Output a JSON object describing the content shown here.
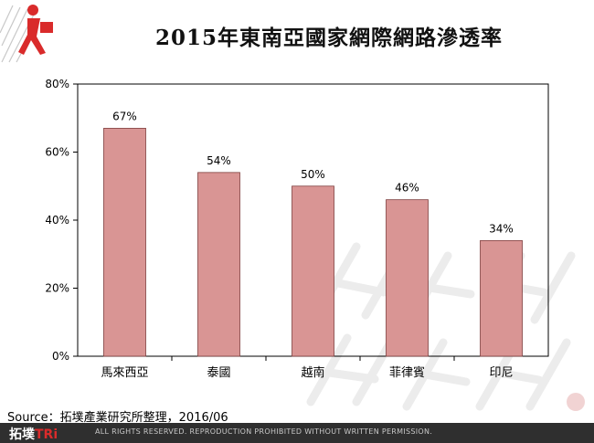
{
  "title": "2015年東南亞國家網際網路滲透率",
  "source": "Source：拓墣產業研究所整理，2016/06",
  "footer": {
    "brand_cn": "拓墣",
    "brand_en": "TRi",
    "notice": "ALL RIGHTS RESERVED. REPRODUCTION PROHIBITED WITHOUT WRITTEN PERMISSION."
  },
  "colors": {
    "bar": "#d99594",
    "bar_border": "#7f3f3e",
    "accent": "#d92b2b"
  },
  "chart_data": {
    "type": "bar",
    "title": "2015年東南亞國家網際網路滲透率",
    "xlabel": "",
    "ylabel": "",
    "categories": [
      "馬來西亞",
      "泰國",
      "越南",
      "菲律賓",
      "印尼"
    ],
    "values": [
      67,
      54,
      50,
      46,
      34
    ],
    "data_labels": [
      "67%",
      "54%",
      "50%",
      "46%",
      "34%"
    ],
    "ylim": [
      0,
      80
    ],
    "yticks": [
      0,
      20,
      40,
      60,
      80
    ],
    "ytick_labels": [
      "0%",
      "20%",
      "40%",
      "60%",
      "80%"
    ],
    "grid": false,
    "legend": "none"
  }
}
